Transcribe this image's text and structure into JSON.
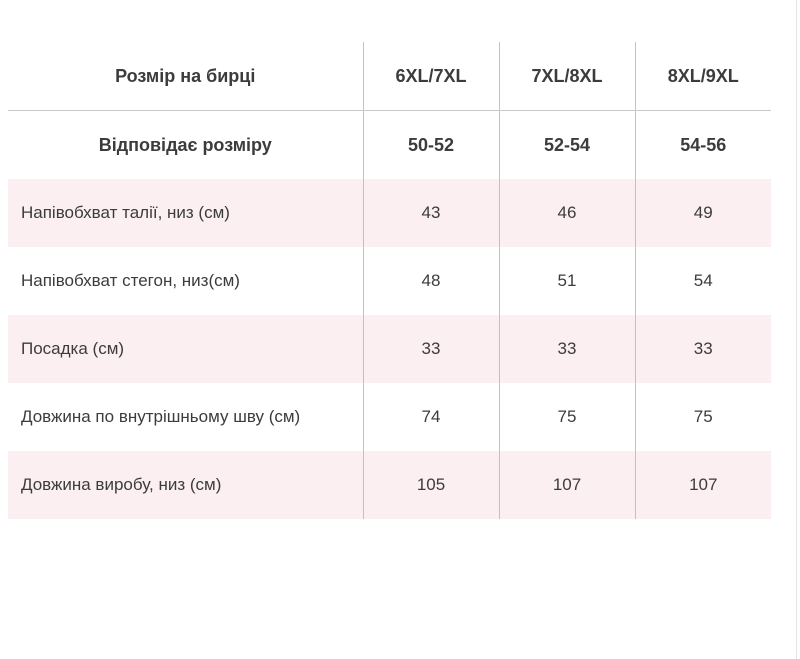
{
  "size_table": {
    "colors": {
      "stripe_pink": "#fbeff2",
      "text": "#3c3c3c",
      "divider": "#c2c2c2",
      "header_border": "#c9c9c9",
      "page_edge": "#e4e4e4",
      "bg": "#ffffff"
    },
    "rows": [
      {
        "label": "Розмір на бирці",
        "values": [
          "6XL/7XL",
          "7XL/8XL",
          "8XL/9XL"
        ]
      },
      {
        "label": "Відповідає розміру",
        "values": [
          "50-52",
          "52-54",
          "54-56"
        ]
      },
      {
        "label": "Напівобхват талії, низ (см)",
        "values": [
          "43",
          "46",
          "49"
        ]
      },
      {
        "label": "Напівобхват стегон, низ(см)",
        "values": [
          "48",
          "51",
          "54"
        ]
      },
      {
        "label": "Посадка (см)",
        "values": [
          "33",
          "33",
          "33"
        ]
      },
      {
        "label": "Довжина по внутрішньому шву (см)",
        "values": [
          "74",
          "75",
          "75"
        ]
      },
      {
        "label": "Довжина виробу, низ (см)",
        "values": [
          "105",
          "107",
          "107"
        ]
      }
    ]
  }
}
